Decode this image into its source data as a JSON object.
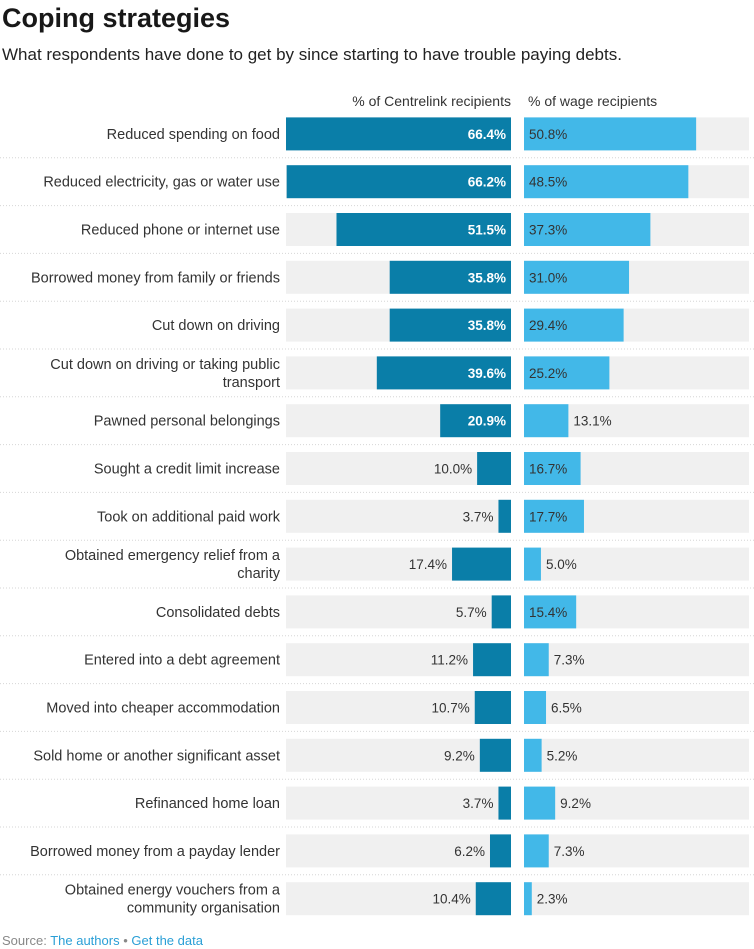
{
  "header": {
    "title": "Coping strategies",
    "subtitle": "What respondents have done to get by since starting to have trouble paying debts."
  },
  "footer": {
    "source_label": "Source:",
    "source_link": "The authors",
    "separator": "•",
    "data_link": "Get the data"
  },
  "colors": {
    "centrelink": "#0a7ea8",
    "wage": "#42b8e8",
    "track": "#f0f0f0"
  },
  "chart_data": {
    "type": "bar",
    "categories": [
      "Reduced spending on food",
      "Reduced electricity, gas or water use",
      "Reduced phone or internet use",
      "Borrowed money from family or friends",
      "Cut down on driving",
      "Cut down on driving or taking public transport",
      "Pawned personal belongings",
      "Sought a credit limit increase",
      "Took on additional paid work",
      "Obtained emergency relief from a charity",
      "Consolidated debts",
      "Entered into a debt agreement",
      "Moved into cheaper accommodation",
      "Sold home or another significant asset",
      "Refinanced home loan",
      "Borrowed money from a payday lender",
      "Obtained energy vouchers from a community organisation"
    ],
    "series": [
      {
        "name": "% of Centrelink recipients",
        "values": [
          66.4,
          66.2,
          51.5,
          35.8,
          35.8,
          39.6,
          20.9,
          10.0,
          3.7,
          17.4,
          5.7,
          11.2,
          10.7,
          9.2,
          3.7,
          6.2,
          10.4
        ],
        "labels": [
          "66.4%",
          "66.2%",
          "51.5%",
          "35.8%",
          "35.8%",
          "39.6%",
          "20.9%",
          "10.0%",
          "3.7%",
          "17.4%",
          "5.7%",
          "11.2%",
          "10.7%",
          "9.2%",
          "3.7%",
          "6.2%",
          "10.4%"
        ]
      },
      {
        "name": "% of wage recipients",
        "values": [
          50.8,
          48.5,
          37.3,
          31.0,
          29.4,
          25.2,
          13.1,
          16.7,
          17.7,
          5.0,
          15.4,
          7.3,
          6.5,
          5.2,
          9.2,
          7.3,
          2.3
        ],
        "labels": [
          "50.8%",
          "48.5%",
          "37.3%",
          "31.0%",
          "29.4%",
          "25.2%",
          "13.1%",
          "16.7%",
          "17.7%",
          "5.0%",
          "15.4%",
          "7.3%",
          "6.5%",
          "5.2%",
          "9.2%",
          "7.3%",
          "2.3%"
        ]
      }
    ],
    "xlim": [
      0,
      66.4
    ]
  }
}
